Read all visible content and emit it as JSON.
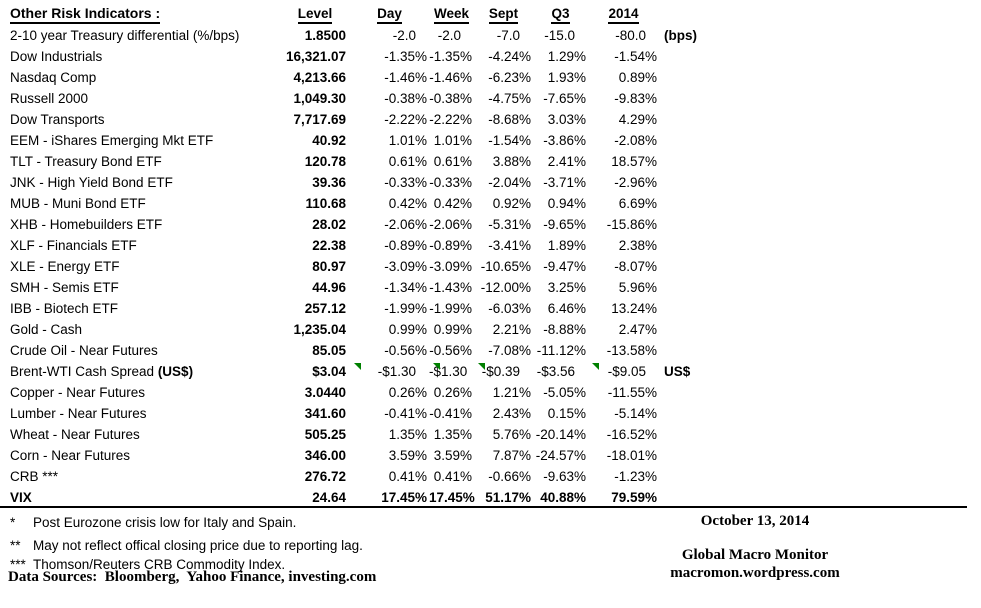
{
  "chart_data": {
    "type": "table",
    "title": "Other Risk Indicators :",
    "columns": [
      "Level",
      "Day",
      "Week",
      "Sept",
      "Q3",
      "2014"
    ],
    "rows": [
      {
        "label": "2-10 year Treasury differential (%/bps)",
        "values": [
          "1.8500",
          "-2.0",
          "-2.0",
          "-7.0",
          "-15.0",
          "-80.0"
        ],
        "unit": "(bps)",
        "padded": true
      },
      {
        "label": "Dow Industrials",
        "values": [
          "16,321.07",
          "-1.35%",
          "-1.35%",
          "-4.24%",
          "1.29%",
          "-1.54%"
        ]
      },
      {
        "label": "Nasdaq Comp",
        "values": [
          "4,213.66",
          "-1.46%",
          "-1.46%",
          "-6.23%",
          "1.93%",
          "0.89%"
        ]
      },
      {
        "label": "Russell 2000",
        "values": [
          "1,049.30",
          "-0.38%",
          "-0.38%",
          "-4.75%",
          "-7.65%",
          "-9.83%"
        ]
      },
      {
        "label": "Dow Transports",
        "values": [
          "7,717.69",
          "-2.22%",
          "-2.22%",
          "-8.68%",
          "3.03%",
          "4.29%"
        ]
      },
      {
        "label": "EEM - iShares Emerging Mkt ETF",
        "values": [
          "40.92",
          "1.01%",
          "1.01%",
          "-1.54%",
          "-3.86%",
          "-2.08%"
        ]
      },
      {
        "label": "TLT - Treasury Bond ETF",
        "values": [
          "120.78",
          "0.61%",
          "0.61%",
          "3.88%",
          "2.41%",
          "18.57%"
        ]
      },
      {
        "label": "JNK - High Yield Bond ETF",
        "values": [
          "39.36",
          "-0.33%",
          "-0.33%",
          "-2.04%",
          "-3.71%",
          "-2.96%"
        ]
      },
      {
        "label": "MUB - Muni Bond ETF",
        "values": [
          "110.68",
          "0.42%",
          "0.42%",
          "0.92%",
          "0.94%",
          "6.69%"
        ]
      },
      {
        "label": "XHB - Homebuilders ETF",
        "values": [
          "28.02",
          "-2.06%",
          "-2.06%",
          "-5.31%",
          "-9.65%",
          "-15.86%"
        ]
      },
      {
        "label": "XLF - Financials ETF",
        "values": [
          "22.38",
          "-0.89%",
          "-0.89%",
          "-3.41%",
          "1.89%",
          "2.38%"
        ]
      },
      {
        "label": "XLE - Energy ETF",
        "values": [
          "80.97",
          "-3.09%",
          "-3.09%",
          "-10.65%",
          "-9.47%",
          "-8.07%"
        ]
      },
      {
        "label": "SMH - Semis ETF",
        "values": [
          "44.96",
          "-1.34%",
          "-1.43%",
          "-12.00%",
          "3.25%",
          "5.96%"
        ]
      },
      {
        "label": "IBB - Biotech ETF",
        "values": [
          "257.12",
          "-1.99%",
          "-1.99%",
          "-6.03%",
          "6.46%",
          "13.24%"
        ]
      },
      {
        "label": "Gold - Cash",
        "values": [
          "1,235.04",
          "0.99%",
          "0.99%",
          "2.21%",
          "-8.88%",
          "2.47%"
        ]
      },
      {
        "label": "Crude Oil - Near Futures",
        "values": [
          "85.05",
          "-0.56%",
          "-0.56%",
          "-7.08%",
          "-11.12%",
          "-13.58%"
        ]
      },
      {
        "label": "Brent-WTI Cash Spread ",
        "label_bold": "(US$)",
        "values": [
          "$3.04",
          "-$1.30",
          "-$1.30",
          "-$0.39",
          "-$3.56",
          "-$9.05"
        ],
        "unit": "US$",
        "padded": true,
        "flags": [
          1,
          2,
          3,
          5
        ]
      },
      {
        "label": "Copper - Near Futures",
        "values": [
          "3.0440",
          "0.26%",
          "0.26%",
          "1.21%",
          "-5.05%",
          "-11.55%"
        ]
      },
      {
        "label": "Lumber - Near Futures",
        "values": [
          "341.60",
          "-0.41%",
          "-0.41%",
          "2.43%",
          "0.15%",
          "-5.14%"
        ]
      },
      {
        "label": "Wheat - Near Futures",
        "values": [
          "505.25",
          "1.35%",
          "1.35%",
          "5.76%",
          "-20.14%",
          "-16.52%"
        ]
      },
      {
        "label": "Corn - Near Futures",
        "values": [
          "346.00",
          "3.59%",
          "3.59%",
          "7.87%",
          "-24.57%",
          "-18.01%"
        ]
      },
      {
        "label": "CRB ***",
        "values": [
          "276.72",
          "0.41%",
          "0.41%",
          "-0.66%",
          "-9.63%",
          "-1.23%"
        ]
      },
      {
        "label": "VIX",
        "bold": true,
        "values": [
          "24.64",
          "17.45%",
          "17.45%",
          "51.17%",
          "40.88%",
          "79.59%"
        ]
      }
    ]
  },
  "footnotes": [
    {
      "marker": "*",
      "text": "Post Eurozone crisis low for Italy and Spain."
    },
    {
      "marker": "**",
      "text": "May not reflect offical closing price due to reporting lag."
    },
    {
      "marker": "***",
      "text": "Thomson/Reuters CRB Commodity Index."
    }
  ],
  "data_sources": "Data Sources:  Bloomberg,  Yahoo Finance, investing.com",
  "footer_right": {
    "date": "October 13, 2014",
    "site": "Global Macro Monitor",
    "url": "macromon.wordpress.com"
  },
  "colors": {
    "flag_green": "#008000",
    "text": "#000000",
    "background": "#ffffff"
  }
}
